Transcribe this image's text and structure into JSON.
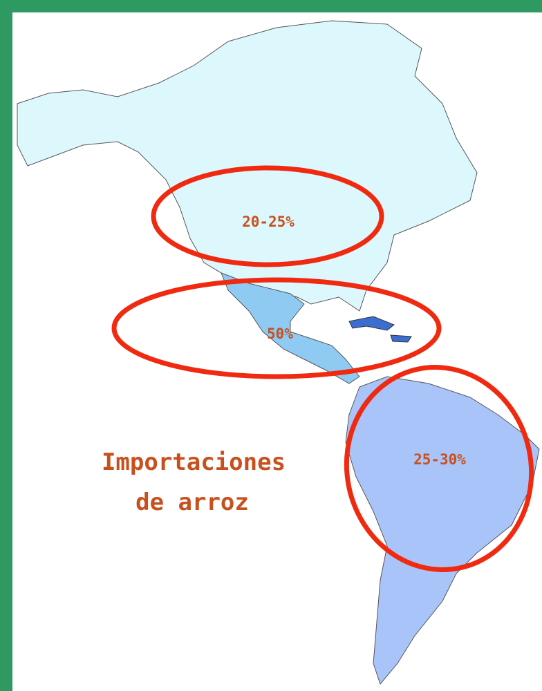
{
  "map": {
    "title_lines": [
      "Importaciones",
      "de arroz"
    ],
    "regions": [
      {
        "label": "20-25%"
      },
      {
        "label": "50%"
      },
      {
        "label": "25-30%"
      }
    ]
  }
}
